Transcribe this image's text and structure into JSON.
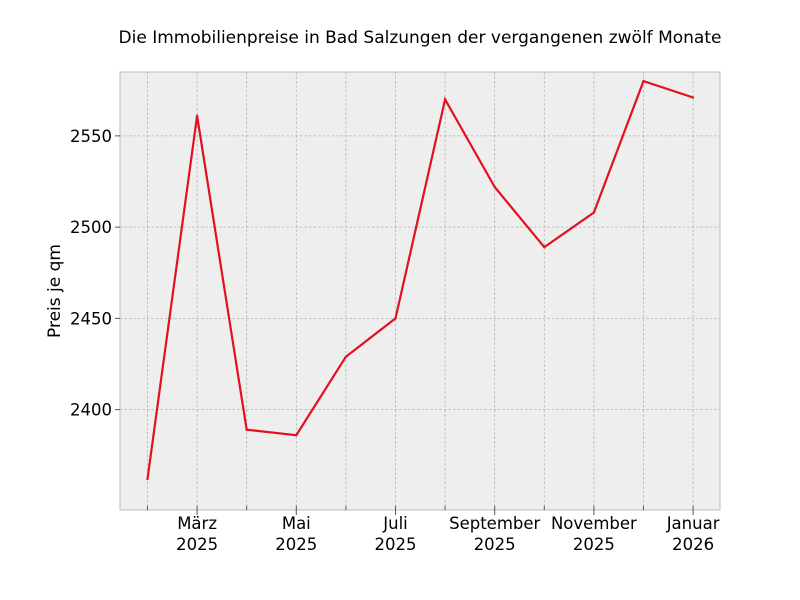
{
  "chart_data": {
    "type": "line",
    "title": "Die Immobilienpreise in Bad Salzungen der vergangenen zwölf Monate",
    "xlabel": "",
    "ylabel": "Preis je qm",
    "x": [
      "2025-02",
      "2025-03",
      "2025-04",
      "2025-05",
      "2025-06",
      "2025-07",
      "2025-08",
      "2025-09",
      "2025-10",
      "2025-11",
      "2025-12",
      "2026-01"
    ],
    "x_ticks": [
      {
        "month": "2025-03",
        "line1": "März",
        "line2": "2025"
      },
      {
        "month": "2025-05",
        "line1": "Mai",
        "line2": "2025"
      },
      {
        "month": "2025-07",
        "line1": "Juli",
        "line2": "2025"
      },
      {
        "month": "2025-09",
        "line1": "September",
        "line2": "2025"
      },
      {
        "month": "2025-11",
        "line1": "November",
        "line2": "2025"
      },
      {
        "month": "2026-01",
        "line1": "Januar",
        "line2": "2026"
      }
    ],
    "y_ticks": [
      "2400",
      "2450",
      "2500",
      "2550"
    ],
    "ylim": [
      2345,
      2585
    ],
    "series": [
      {
        "name": "",
        "color": "#e3101e",
        "values": [
          2362,
          2561,
          2389,
          2386,
          2429,
          2450,
          2570,
          2522,
          2489,
          2508,
          2580,
          2571
        ]
      }
    ],
    "grid": true,
    "background": "#eeeeee"
  }
}
